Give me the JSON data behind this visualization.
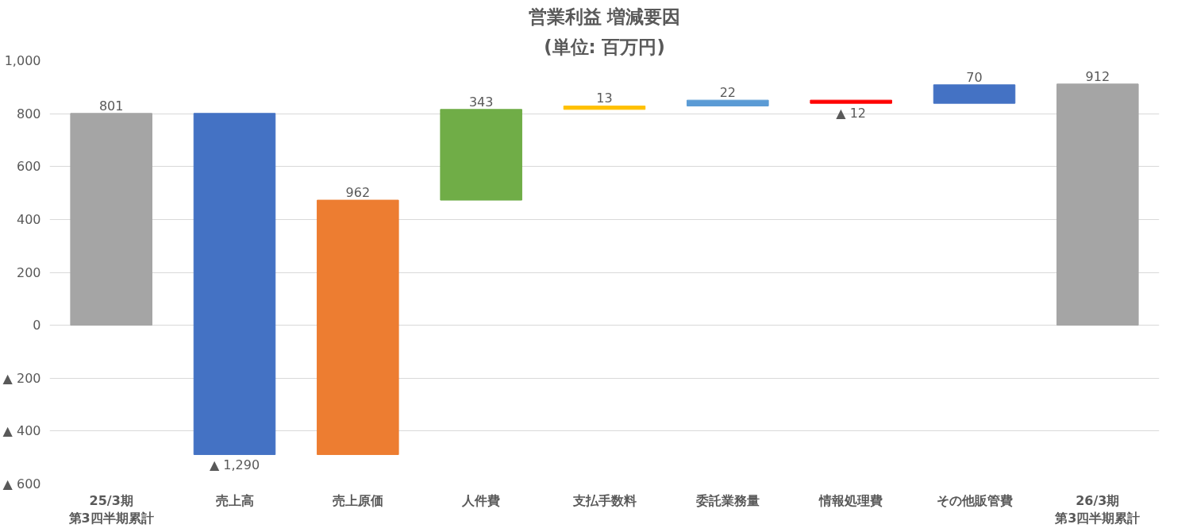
{
  "chart_data": {
    "type": "bar",
    "title": "営業利益 増減要因",
    "subtitle": "(単位: 百万円)",
    "categories": [
      "25/3期第3四半期累計",
      "売上高",
      "売上原価",
      "人件費",
      "支払手数料",
      "委託業務量",
      "情報処理費",
      "その他販管費",
      "26/3期第3四半期累計"
    ],
    "values": [
      801,
      -1290,
      962,
      343,
      13,
      22,
      -12,
      70,
      912
    ],
    "base": [
      0,
      801,
      -489,
      473,
      816,
      829,
      851,
      839,
      0
    ],
    "colors": [
      "#a5a5a5",
      "#4472c4",
      "#ed7d31",
      "#70ad47",
      "#ffc000",
      "#5b9bd5",
      "#ff0000",
      "#4472c4",
      "#a5a5a5"
    ],
    "value_labels": [
      "801",
      "▲ 1,290",
      "962",
      "343",
      "13",
      "22",
      "▲ 12",
      "70",
      "912"
    ],
    "ylim": [
      -600,
      1000
    ],
    "yticks": [
      {
        "value": -600,
        "label": "▲ 600"
      },
      {
        "value": -400,
        "label": "▲ 400"
      },
      {
        "value": -200,
        "label": "▲ 200"
      },
      0,
      200,
      400,
      600,
      800,
      {
        "value": 1000,
        "label": "1,000"
      }
    ],
    "grid": "y"
  }
}
